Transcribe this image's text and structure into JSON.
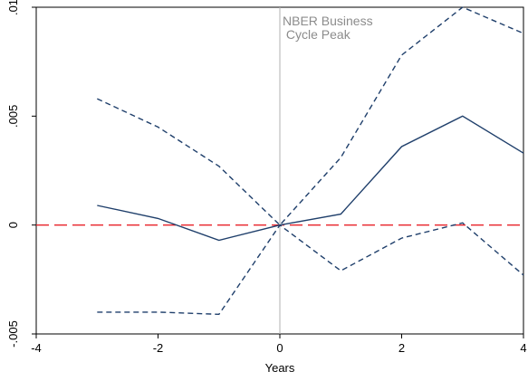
{
  "chart_data": {
    "type": "line",
    "xlabel": "Years",
    "ylabel": "",
    "xlim": [
      -4,
      4
    ],
    "ylim": [
      -0.005,
      0.01
    ],
    "x_ticks": [
      -4,
      -2,
      0,
      2,
      4
    ],
    "x_tick_labels": [
      "-4",
      "-2",
      "0",
      "2",
      "4"
    ],
    "y_ticks": [
      -0.005,
      0,
      0.005,
      0.01
    ],
    "y_tick_labels": [
      "-.005",
      "0",
      ".005",
      ".01"
    ],
    "grid": false,
    "legend": "none",
    "series": [
      {
        "style": "solid",
        "color": "#1f3f6b",
        "x": [
          -3,
          -2,
          -1,
          0,
          1,
          2,
          3,
          4
        ],
        "y": [
          0.0009,
          0.0003,
          -0.0007,
          0.0,
          0.0005,
          0.0036,
          0.005,
          0.0033
        ]
      },
      {
        "style": "dashed",
        "color": "#1f3f6b",
        "x": [
          -3,
          -2,
          -1,
          0,
          1,
          2,
          3,
          4
        ],
        "y": [
          0.0058,
          0.0045,
          0.0027,
          0.0,
          0.0031,
          0.0078,
          0.01,
          0.0088
        ]
      },
      {
        "style": "dashed",
        "color": "#1f3f6b",
        "x": [
          -3,
          -2,
          -1,
          0,
          1,
          2,
          3,
          4
        ],
        "y": [
          -0.004,
          -0.004,
          -0.0041,
          0.0,
          -0.0021,
          -0.0006,
          0.0001,
          -0.0023
        ]
      }
    ],
    "reference_lines": [
      {
        "orientation": "horizontal",
        "value": 0,
        "style": "long-dash",
        "color": "#e8222a"
      },
      {
        "orientation": "vertical",
        "value": 0,
        "style": "solid",
        "color": "#b0b0b0"
      }
    ],
    "annotation": {
      "lines": [
        "NBER Business",
        " Cycle Peak"
      ],
      "x": 0,
      "y": 0.0097,
      "color": "#8c8c8c"
    }
  }
}
